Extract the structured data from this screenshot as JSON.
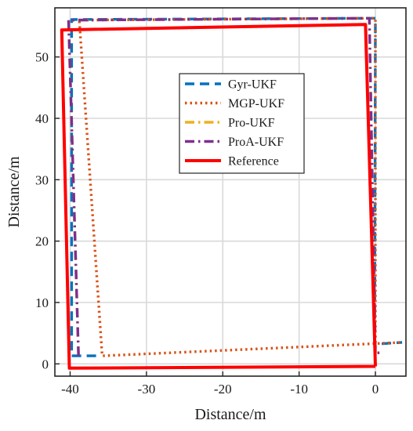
{
  "chart_data": {
    "type": "line",
    "title": "",
    "xlabel": "Distance/m",
    "ylabel": "Distance/m",
    "xlim": [
      -42,
      4
    ],
    "ylim": [
      -2,
      58
    ],
    "xticks": [
      -40,
      -30,
      -20,
      -10,
      0
    ],
    "yticks": [
      0,
      10,
      20,
      30,
      40,
      50
    ],
    "grid": true,
    "legend_position": "upper-center",
    "series": [
      {
        "name": "Gyr-UKF",
        "color": "#0072BD",
        "line_style": "dashed",
        "x": [
          -36.6,
          -39.8,
          -39.8,
          0.0,
          -0.1,
          3.5
        ],
        "y": [
          1.3,
          1.3,
          56.1,
          56.3,
          3.2,
          3.5
        ]
      },
      {
        "name": "MGP-UKF",
        "color": "#D95319",
        "line_style": "dotted",
        "x": [
          0.0,
          0.0,
          -38.8,
          -35.8,
          3.5
        ],
        "y": [
          1.8,
          56.3,
          56.0,
          1.3,
          3.5
        ]
      },
      {
        "name": "Pro-UKF",
        "color": "#EDB120",
        "line_style": "dash-dot",
        "x": [
          -38.9,
          -40.2,
          -0.8,
          0.0,
          0.9
        ],
        "y": [
          1.3,
          56.0,
          56.3,
          1.8,
          1.8
        ]
      },
      {
        "name": "ProA-UKF",
        "color": "#7E2F8E",
        "line_style": "dash-dot",
        "x": [
          -38.9,
          -40.2,
          -0.8,
          0.0,
          0.9
        ],
        "y": [
          1.3,
          56.0,
          56.3,
          1.8,
          1.8
        ]
      },
      {
        "name": "Reference",
        "color": "#FF0000",
        "line_style": "solid",
        "x": [
          0.0,
          -1.3,
          -41.1,
          -40.1,
          0.0
        ],
        "y": [
          -0.4,
          55.3,
          54.4,
          -0.7,
          -0.4
        ]
      }
    ]
  }
}
